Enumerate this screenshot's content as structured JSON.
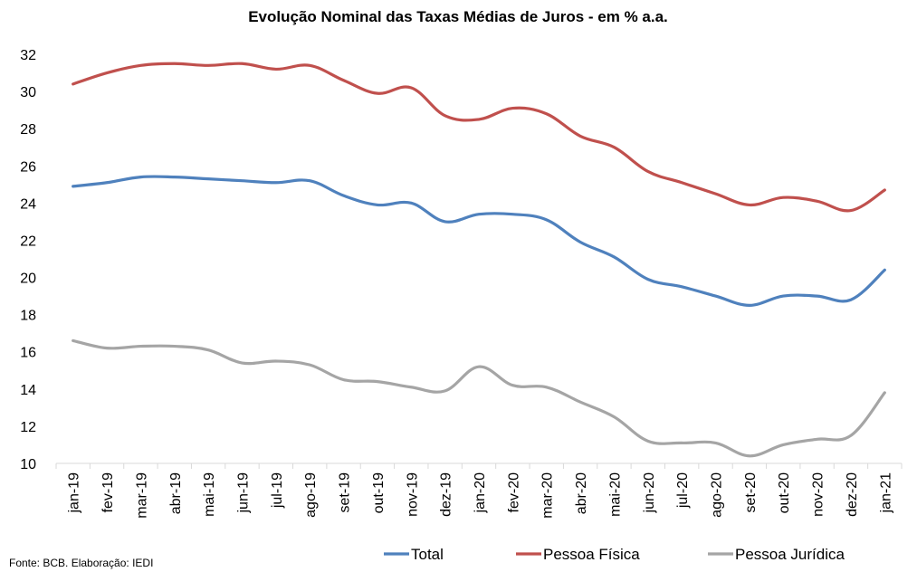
{
  "chart_data": {
    "type": "line",
    "title": "Evolução Nominal das Taxas Médias de Juros - em % a.a.",
    "xlabel": "",
    "ylabel": "",
    "ylim": [
      10,
      32
    ],
    "yticks": [
      10,
      12,
      14,
      16,
      18,
      20,
      22,
      24,
      26,
      28,
      30,
      32
    ],
    "grid": false,
    "legend_position": "bottom",
    "categories": [
      "jan-19",
      "fev-19",
      "mar-19",
      "abr-19",
      "mai-19",
      "jun-19",
      "jul-19",
      "ago-19",
      "set-19",
      "out-19",
      "nov-19",
      "dez-19",
      "jan-20",
      "fev-20",
      "mar-20",
      "abr-20",
      "mai-20",
      "jun-20",
      "jul-20",
      "ago-20",
      "set-20",
      "out-20",
      "nov-20",
      "dez-20",
      "jan-21"
    ],
    "series": [
      {
        "name": "Total",
        "color": "#4f81bd",
        "values": [
          24.9,
          25.1,
          25.4,
          25.4,
          25.3,
          25.2,
          25.1,
          25.2,
          24.4,
          23.9,
          24.0,
          23.0,
          23.4,
          23.4,
          23.1,
          21.9,
          21.1,
          19.9,
          19.5,
          19.0,
          18.5,
          19.0,
          19.0,
          18.8,
          20.4
        ]
      },
      {
        "name": "Pessoa Física",
        "color": "#c0504d",
        "values": [
          30.4,
          31.0,
          31.4,
          31.5,
          31.4,
          31.5,
          31.2,
          31.4,
          30.6,
          29.9,
          30.2,
          28.7,
          28.5,
          29.1,
          28.8,
          27.6,
          27.0,
          25.7,
          25.1,
          24.5,
          23.9,
          24.3,
          24.1,
          23.6,
          24.7
        ]
      },
      {
        "name": "Pessoa Jurídica",
        "color": "#a5a5a5",
        "values": [
          16.6,
          16.2,
          16.3,
          16.3,
          16.1,
          15.4,
          15.5,
          15.3,
          14.5,
          14.4,
          14.1,
          13.9,
          15.2,
          14.2,
          14.1,
          13.3,
          12.5,
          11.2,
          11.1,
          11.1,
          10.4,
          11.0,
          11.3,
          11.5,
          13.8
        ]
      }
    ]
  },
  "source_note": "Fonte: BCB. Elaboração: IEDI"
}
